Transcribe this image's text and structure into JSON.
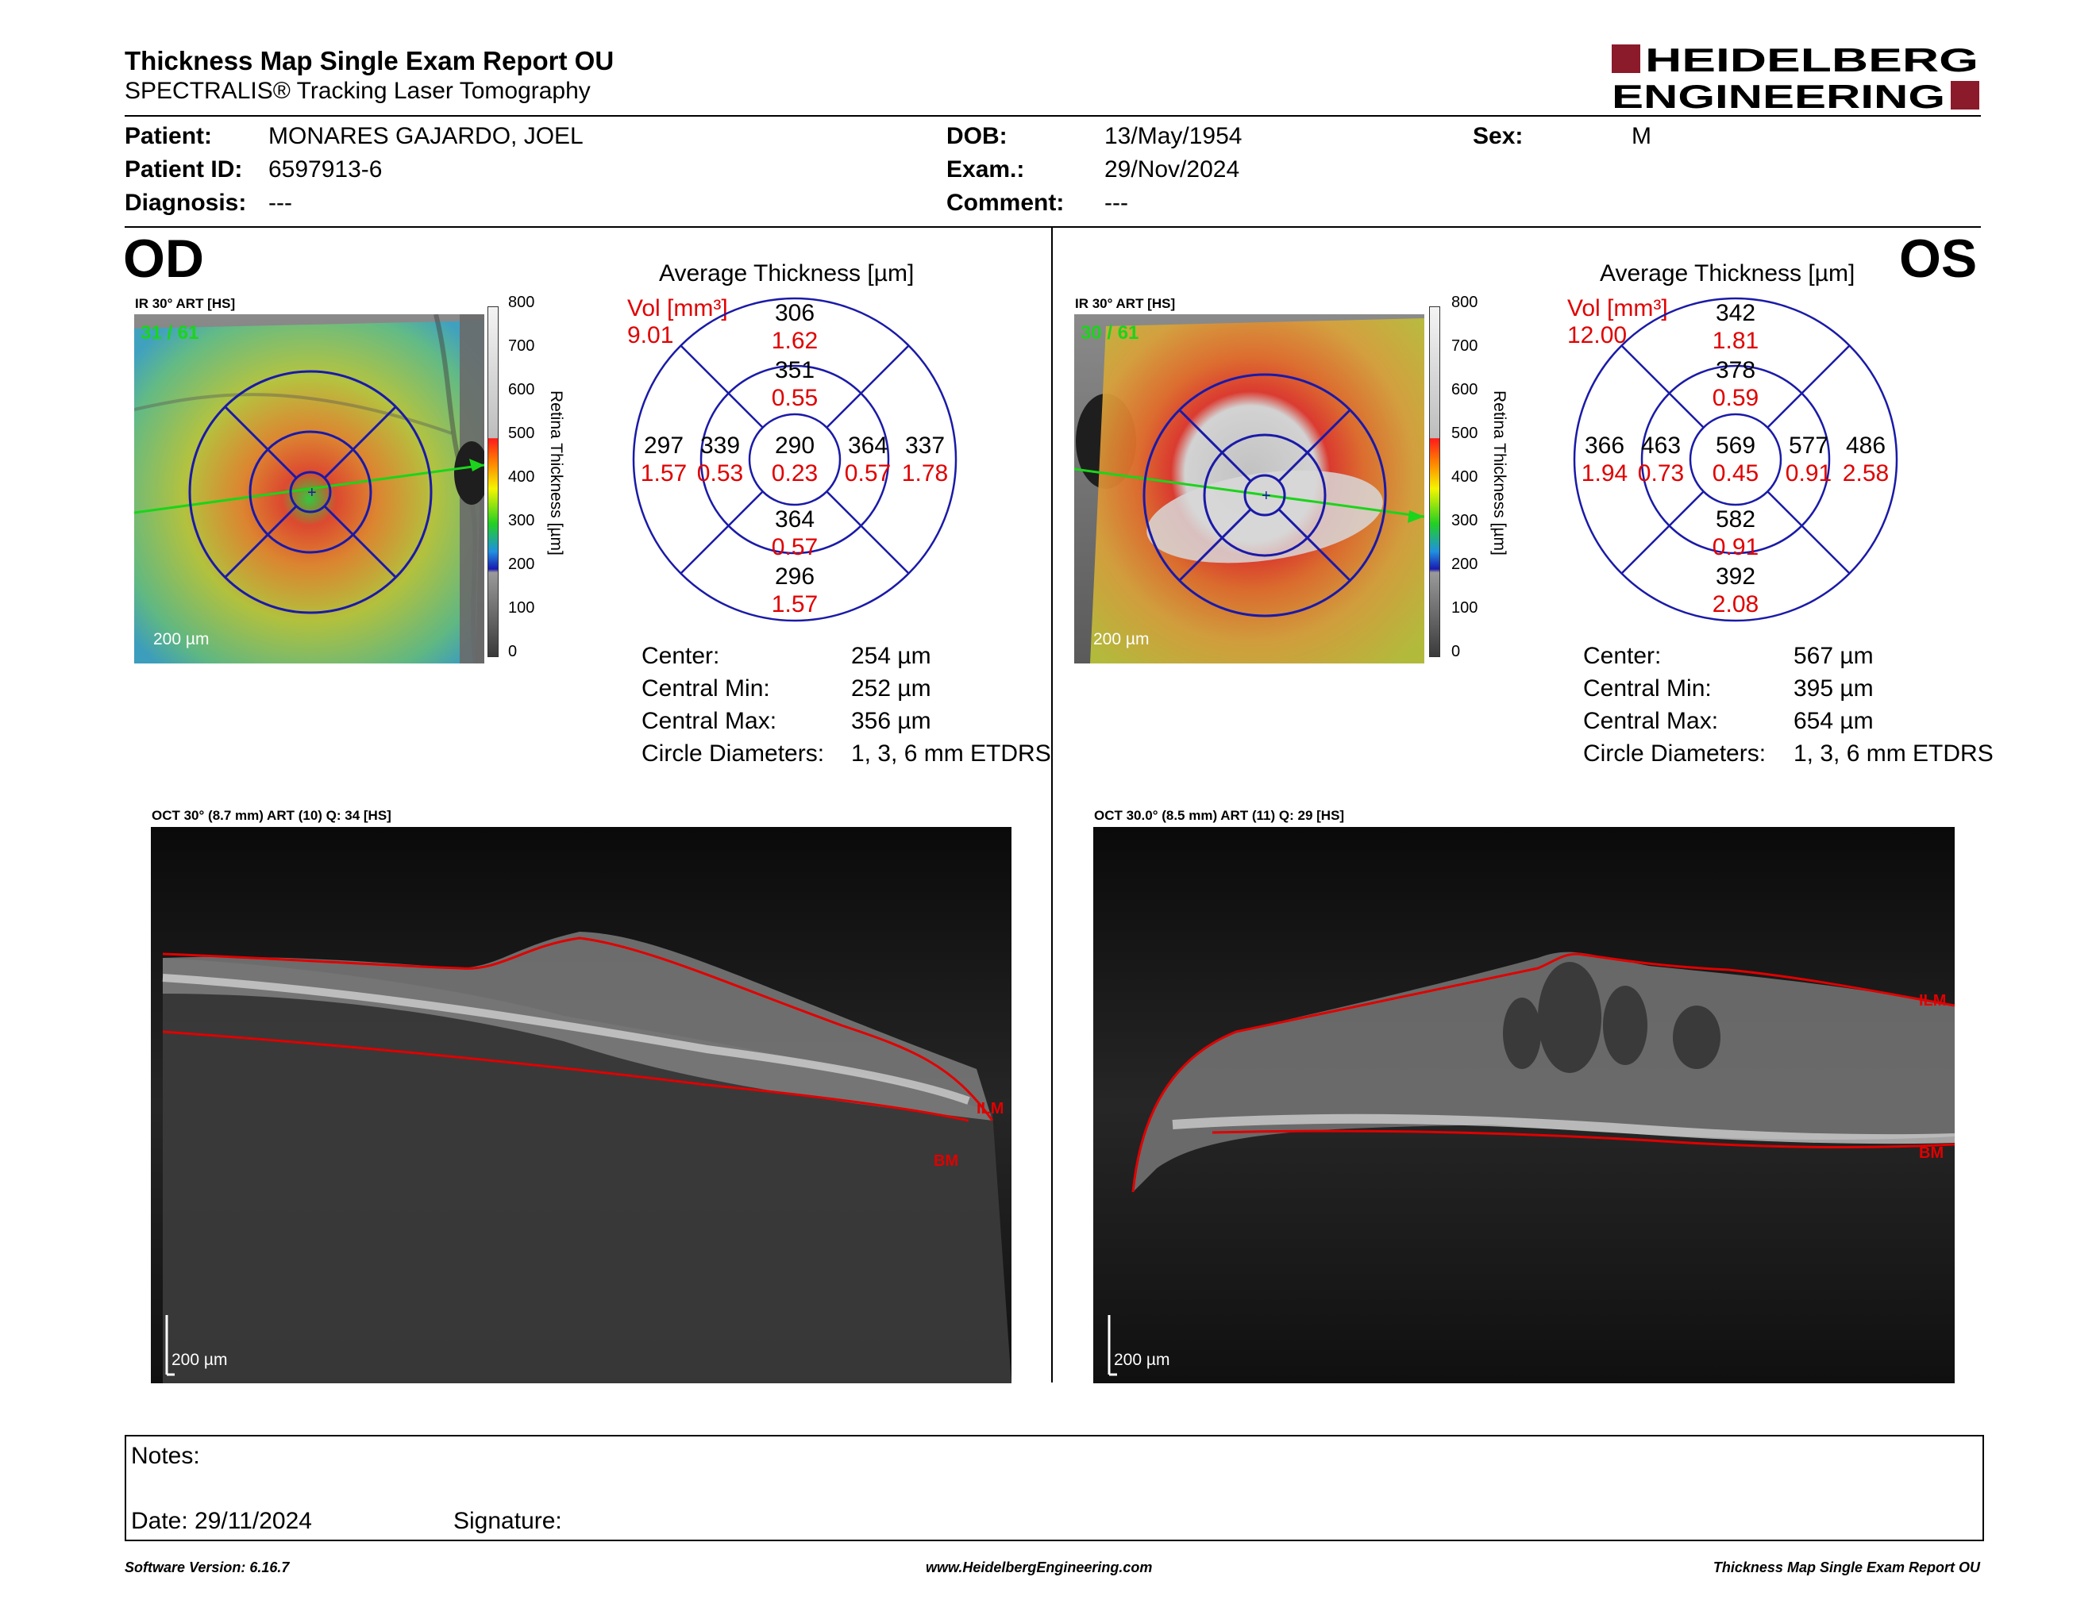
{
  "header": {
    "title": "Thickness Map Single Exam Report OU",
    "subtitle": "SPECTRALIS® Tracking Laser Tomography",
    "logo_line1": "HEIDELBERG",
    "logo_line2": "ENGINEERING",
    "logo_color": "#8b1a2b"
  },
  "patient": {
    "patient_label": "Patient:",
    "patient_value": "MONARES GAJARDO, JOEL",
    "id_label": "Patient ID:",
    "id_value": "6597913-6",
    "diagnosis_label": "Diagnosis:",
    "diagnosis_value": "---",
    "dob_label": "DOB:",
    "dob_value": "13/May/1954",
    "exam_label": "Exam.:",
    "exam_value": "29/Nov/2024",
    "comment_label": "Comment:",
    "comment_value": "---",
    "sex_label": "Sex:",
    "sex_value": "M"
  },
  "colorbar": {
    "ticks": [
      "800",
      "700",
      "600",
      "500",
      "400",
      "300",
      "200",
      "100",
      "0"
    ],
    "title": "Retina Thickness [µm]"
  },
  "od": {
    "eye": "OD",
    "ir_caption": "IR 30° ART [HS]",
    "frame_count": "31 / 61",
    "scale": "200 µm",
    "avg_title": "Average Thickness [µm]",
    "vol_label": "Vol [mm³]",
    "vol_value": "9.01",
    "grid": {
      "sup_outer": "306",
      "sup_outer_vol": "1.62",
      "sup_inner": "351",
      "sup_inner_vol": "0.55",
      "temp_outer": "297",
      "temp_outer_vol": "1.57",
      "temp_inner": "339",
      "temp_inner_vol": "0.53",
      "center": "290",
      "center_vol": "0.23",
      "nasal_inner": "364",
      "nasal_inner_vol": "0.57",
      "nasal_outer": "337",
      "nasal_outer_vol": "1.78",
      "inf_inner": "364",
      "inf_inner_vol": "0.57",
      "inf_outer": "296",
      "inf_outer_vol": "1.57"
    },
    "stats": {
      "center_label": "Center:",
      "center_value": "254 µm",
      "min_label": "Central Min:",
      "min_value": "252 µm",
      "max_label": "Central Max:",
      "max_value": "356 µm",
      "diam_label": "Circle Diameters:",
      "diam_value": "1, 3, 6 mm ETDRS"
    },
    "oct_caption": "OCT 30° (8.7 mm) ART (10) Q: 34 [HS]",
    "oct_ilm": "ILM",
    "oct_bm": "BM",
    "oct_scale": "200 µm"
  },
  "os": {
    "eye": "OS",
    "ir_caption": "IR 30° ART [HS]",
    "frame_count": "30 / 61",
    "scale": "200 µm",
    "avg_title": "Average Thickness [µm]",
    "vol_label": "Vol [mm³]",
    "vol_value": "12.00",
    "grid": {
      "sup_outer": "342",
      "sup_outer_vol": "1.81",
      "sup_inner": "378",
      "sup_inner_vol": "0.59",
      "temp_outer": "366",
      "temp_outer_vol": "1.94",
      "temp_inner": "463",
      "temp_inner_vol": "0.73",
      "center": "569",
      "center_vol": "0.45",
      "nasal_inner": "577",
      "nasal_inner_vol": "0.91",
      "nasal_outer": "486",
      "nasal_outer_vol": "2.58",
      "inf_inner": "582",
      "inf_inner_vol": "0.91",
      "inf_outer": "392",
      "inf_outer_vol": "2.08"
    },
    "stats": {
      "center_label": "Center:",
      "center_value": "567 µm",
      "min_label": "Central Min:",
      "min_value": "395 µm",
      "max_label": "Central Max:",
      "max_value": "654 µm",
      "diam_label": "Circle Diameters:",
      "diam_value": "1, 3, 6 mm ETDRS"
    },
    "oct_caption": "OCT 30.0° (8.5 mm) ART (11) Q: 29 [HS]",
    "oct_ilm": "ILM",
    "oct_bm": "BM",
    "oct_scale": "200 µm"
  },
  "notes": {
    "notes_label": "Notes:",
    "date_label": "Date: 29/11/2024",
    "signature_label": "Signature:"
  },
  "footer": {
    "software": "Software Version: 6.16.7",
    "website": "www.HeidelbergEngineering.com",
    "report": "Thickness Map Single Exam Report OU"
  },
  "colors": {
    "grid_blue": "#1a1aa8",
    "vol_red": "#e00000",
    "scan_green": "#1bd41b",
    "segment_red": "#e00000"
  }
}
